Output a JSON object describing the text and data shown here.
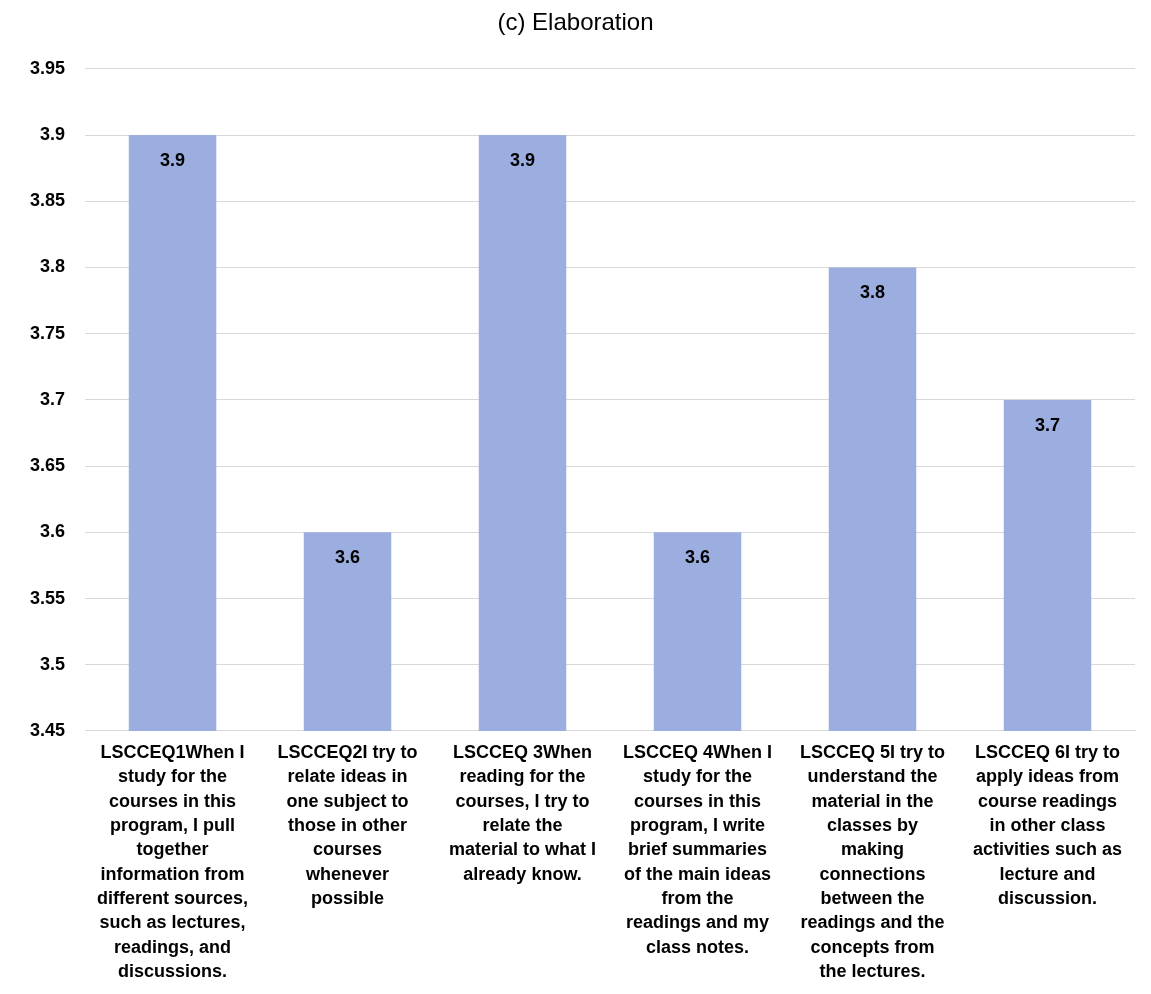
{
  "chart_data": {
    "type": "bar",
    "title": "(c)  Elaboration",
    "categories": [
      "LSCCEQ1When I study for the courses in this program, I pull together information from different sources, such as lectures, readings, and discussions.",
      "LSCCEQ2I try to relate ideas in one subject to those in other courses whenever possible",
      "LSCCEQ 3When reading for the courses, I try to relate the material to what I already know.",
      "LSCCEQ 4When I study for the courses in this program, I write brief summaries of the main ideas from the readings and my class notes.",
      "LSCCEQ 5I try to understand the material in the classes by making connections between the readings and the concepts from the lectures.",
      "LSCCEQ 6I try to apply ideas from course readings in other class activities such as lecture and discussion."
    ],
    "values": [
      3.9,
      3.6,
      3.9,
      3.6,
      3.8,
      3.7
    ],
    "color": "#9caee0",
    "ylim": [
      3.45,
      3.95
    ],
    "yticks": [
      3.45,
      3.5,
      3.55,
      3.6,
      3.65,
      3.7,
      3.75,
      3.8,
      3.85,
      3.9,
      3.95
    ],
    "grid": "y",
    "data_labels": true,
    "legend": false
  }
}
